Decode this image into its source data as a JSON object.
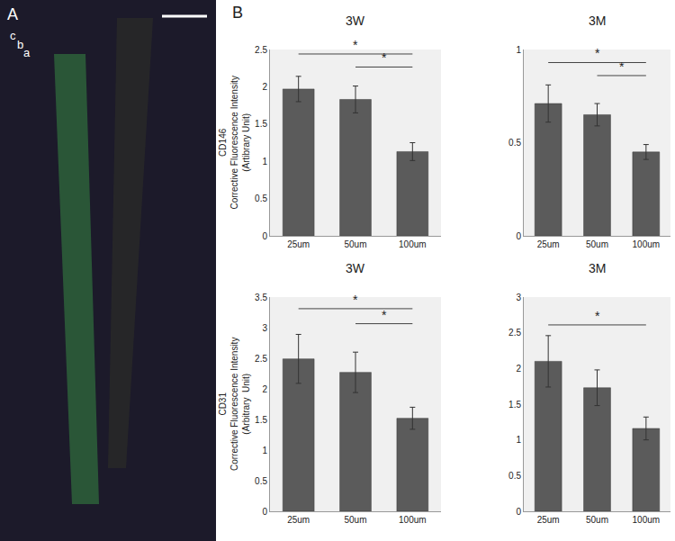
{
  "panels": {
    "A": {
      "label": "A",
      "regions": [
        "c",
        "b",
        "a"
      ]
    },
    "B": {
      "label": "B"
    }
  },
  "chart_data": [
    {
      "type": "bar",
      "title": "3W",
      "ylabel": [
        "CD146",
        "Corrective Fluorescence Intensity",
        "(Artibrary Unit)"
      ],
      "categories": [
        "25um",
        "50um",
        "100um"
      ],
      "values": [
        1.97,
        1.83,
        1.13
      ],
      "errors": [
        0.17,
        0.18,
        0.12
      ],
      "color": "#5b5b5b",
      "ylim": [
        0,
        2.5
      ],
      "yticks": [
        0,
        0.5,
        1,
        1.5,
        2,
        2.5
      ],
      "significance": [
        {
          "from": "25um",
          "to": "100um",
          "label": "*"
        },
        {
          "from": "50um",
          "to": "100um",
          "label": "*"
        }
      ]
    },
    {
      "type": "bar",
      "title": "3M",
      "categories": [
        "25um",
        "50um",
        "100um"
      ],
      "values": [
        0.71,
        0.65,
        0.45
      ],
      "errors": [
        0.1,
        0.06,
        0.04
      ],
      "color": "#5b5b5b",
      "ylim": [
        0,
        1
      ],
      "yticks": [
        0,
        0.5,
        1
      ],
      "significance": [
        {
          "from": "25um",
          "to": "100um",
          "label": "*"
        },
        {
          "from": "50um",
          "to": "100um",
          "label": "*"
        }
      ]
    },
    {
      "type": "bar",
      "title": "3W",
      "ylabel": [
        "CD31",
        "Corrective Fluorescence Intensity",
        "(Arbitrary  Unit)"
      ],
      "categories": [
        "25um",
        "50um",
        "100um"
      ],
      "values": [
        2.49,
        2.27,
        1.52
      ],
      "errors": [
        0.4,
        0.33,
        0.18
      ],
      "color": "#5b5b5b",
      "ylim": [
        0,
        3.5
      ],
      "yticks": [
        0,
        0.5,
        1,
        1.5,
        2,
        2.5,
        3,
        3.5
      ],
      "significance": [
        {
          "from": "25um",
          "to": "100um",
          "label": "*"
        },
        {
          "from": "50um",
          "to": "100um",
          "label": "*"
        }
      ]
    },
    {
      "type": "bar",
      "title": "3M",
      "categories": [
        "25um",
        "50um",
        "100um"
      ],
      "values": [
        2.1,
        1.73,
        1.16
      ],
      "errors": [
        0.36,
        0.25,
        0.16
      ],
      "color": "#5b5b5b",
      "ylim": [
        0,
        3
      ],
      "yticks": [
        0,
        0.5,
        1,
        1.5,
        2,
        2.5,
        3
      ],
      "significance": [
        {
          "from": "25um",
          "to": "100um",
          "label": "*"
        }
      ]
    }
  ]
}
